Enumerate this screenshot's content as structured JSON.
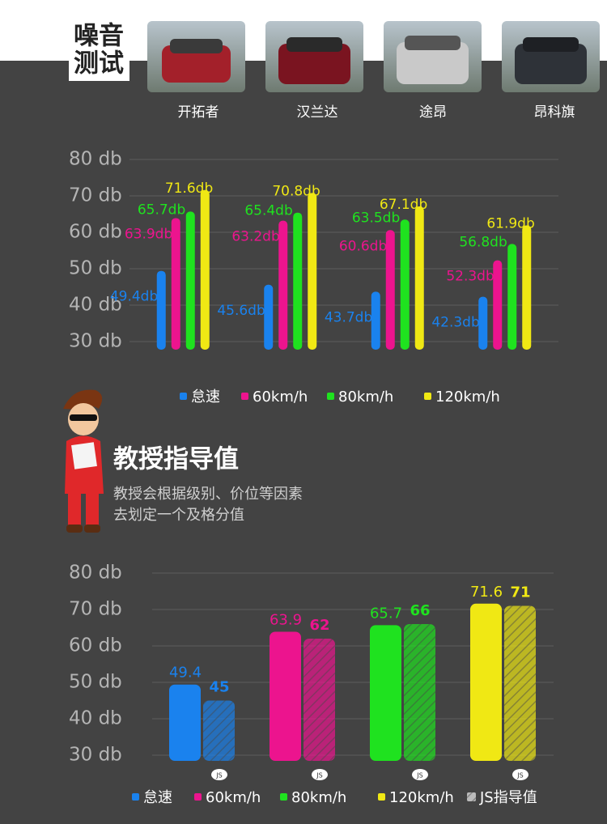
{
  "header": {
    "title_lines": [
      "噪音",
      "测试"
    ]
  },
  "section": {
    "title": "教授指导值",
    "description_lines": [
      "教授会根据级别、价位等因素",
      "去划定一个及格分值"
    ]
  },
  "chart_data": [
    {
      "type": "grouped_bar",
      "categories": [
        "开拓者",
        "汉兰达",
        "途昂",
        "昂科旗"
      ],
      "series": [
        {
          "name": "怠速",
          "color": "#1a82ee",
          "values": [
            49.4,
            45.6,
            43.7,
            42.3
          ],
          "value_labels": [
            "49.4db",
            "45.6db",
            "43.7db",
            "42.3db"
          ]
        },
        {
          "name": "60km/h",
          "color": "#ec148e",
          "values": [
            63.9,
            63.2,
            60.6,
            52.3
          ],
          "value_labels": [
            "63.9db",
            "63.2db",
            "60.6db",
            "52.3db"
          ]
        },
        {
          "name": "80km/h",
          "color": "#1fe21f",
          "values": [
            65.7,
            65.4,
            63.5,
            56.8
          ],
          "value_labels": [
            "65.7db",
            "65.4db",
            "63.5db",
            "56.8db"
          ]
        },
        {
          "name": "120km/h",
          "color": "#f0e814",
          "values": [
            71.6,
            70.8,
            67.1,
            61.9
          ],
          "value_labels": [
            "71.6db",
            "70.8db",
            "67.1db",
            "61.9db"
          ]
        }
      ],
      "ylim": [
        30,
        80
      ],
      "yticks": [
        {
          "value": 30,
          "label": "30 db"
        },
        {
          "value": 40,
          "label": "40 db"
        },
        {
          "value": 50,
          "label": "50 db"
        },
        {
          "value": 60,
          "label": "60 db"
        },
        {
          "value": 70,
          "label": "70 db"
        },
        {
          "value": 80,
          "label": "80 db"
        }
      ],
      "grid": true
    },
    {
      "type": "paired_bar",
      "categories": [
        "怠速",
        "60km/h",
        "80km/h",
        "120km/h"
      ],
      "colors": [
        "#1a82ee",
        "#ec148e",
        "#1fe21f",
        "#f0e814"
      ],
      "values": [
        49.4,
        63.9,
        65.7,
        71.6
      ],
      "guide_name": "JS指导值",
      "guide_badge": "JS",
      "guide_values": [
        45,
        62,
        66,
        71
      ],
      "ylim": [
        30,
        80
      ],
      "yticks": [
        {
          "value": 30,
          "label": "30 db"
        },
        {
          "value": 40,
          "label": "40 db"
        },
        {
          "value": 50,
          "label": "50 db"
        },
        {
          "value": 60,
          "label": "60 db"
        },
        {
          "value": 70,
          "label": "70 db"
        },
        {
          "value": 80,
          "label": "80 db"
        }
      ],
      "grid": true
    }
  ]
}
